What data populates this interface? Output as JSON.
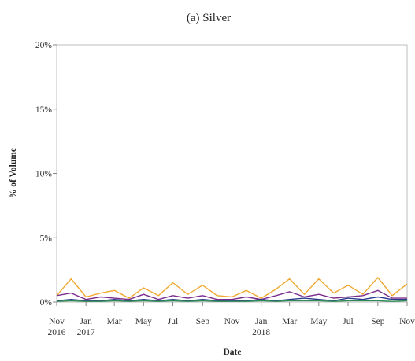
{
  "chart_data": {
    "type": "line",
    "title": "(a) Silver",
    "xlabel": "Date",
    "ylabel": "% of Volume",
    "ylim": [
      0,
      20
    ],
    "xlim": [
      "2016-11",
      "2018-11"
    ],
    "y_ticks": [
      "0%",
      "5%",
      "10%",
      "15%",
      "20%"
    ],
    "x_ticks": [
      {
        "month": "Nov",
        "year": "2016"
      },
      {
        "month": "Jan",
        "year": "2017"
      },
      {
        "month": "Mar",
        "year": ""
      },
      {
        "month": "May",
        "year": ""
      },
      {
        "month": "Jul",
        "year": ""
      },
      {
        "month": "Sep",
        "year": ""
      },
      {
        "month": "Nov",
        "year": ""
      },
      {
        "month": "Jan",
        "year": "2018"
      },
      {
        "month": "Mar",
        "year": ""
      },
      {
        "month": "May",
        "year": ""
      },
      {
        "month": "Jul",
        "year": ""
      },
      {
        "month": "Sep",
        "year": ""
      },
      {
        "month": "Nov",
        "year": ""
      }
    ],
    "grid": false,
    "legend": "none",
    "x": [
      "2016-11-01",
      "2016-12-01",
      "2017-01-01",
      "2017-02-01",
      "2017-03-01",
      "2017-04-01",
      "2017-05-01",
      "2017-06-01",
      "2017-07-01",
      "2017-08-01",
      "2017-09-01",
      "2017-10-01",
      "2017-11-01",
      "2017-12-01",
      "2018-01-01",
      "2018-02-01",
      "2018-03-01",
      "2018-04-01",
      "2018-05-01",
      "2018-06-01",
      "2018-07-01",
      "2018-08-01",
      "2018-09-01",
      "2018-10-01",
      "2018-11-01"
    ],
    "series": [
      {
        "color": "#f0a830",
        "values": [
          0.5,
          1.8,
          0.4,
          0.7,
          0.9,
          0.3,
          1.1,
          0.5,
          1.5,
          0.6,
          1.3,
          0.5,
          0.4,
          0.9,
          0.3,
          1.0,
          1.8,
          0.6,
          1.8,
          0.7,
          1.3,
          0.6,
          1.9,
          0.5,
          1.4
        ]
      },
      {
        "color": "#7b2d8e",
        "values": [
          0.5,
          0.7,
          0.2,
          0.4,
          0.3,
          0.2,
          0.6,
          0.2,
          0.5,
          0.3,
          0.5,
          0.2,
          0.2,
          0.4,
          0.2,
          0.5,
          0.8,
          0.4,
          0.6,
          0.3,
          0.4,
          0.5,
          0.9,
          0.3,
          0.3
        ]
      },
      {
        "color": "#2a3a8c",
        "values": [
          0.1,
          0.2,
          0.1,
          0.1,
          0.2,
          0.1,
          0.2,
          0.1,
          0.2,
          0.1,
          0.2,
          0.1,
          0.1,
          0.1,
          0.2,
          0.1,
          0.2,
          0.3,
          0.2,
          0.1,
          0.3,
          0.2,
          0.4,
          0.2,
          0.2
        ]
      },
      {
        "color": "#2e8b57",
        "values": [
          0.05,
          0.1,
          0.05,
          0.05,
          0.1,
          0.05,
          0.1,
          0.05,
          0.1,
          0.05,
          0.1,
          0.05,
          0.05,
          0.05,
          0.1,
          0.05,
          0.1,
          0.1,
          0.1,
          0.05,
          0.1,
          0.1,
          0.1,
          0.05,
          0.1
        ]
      }
    ]
  }
}
